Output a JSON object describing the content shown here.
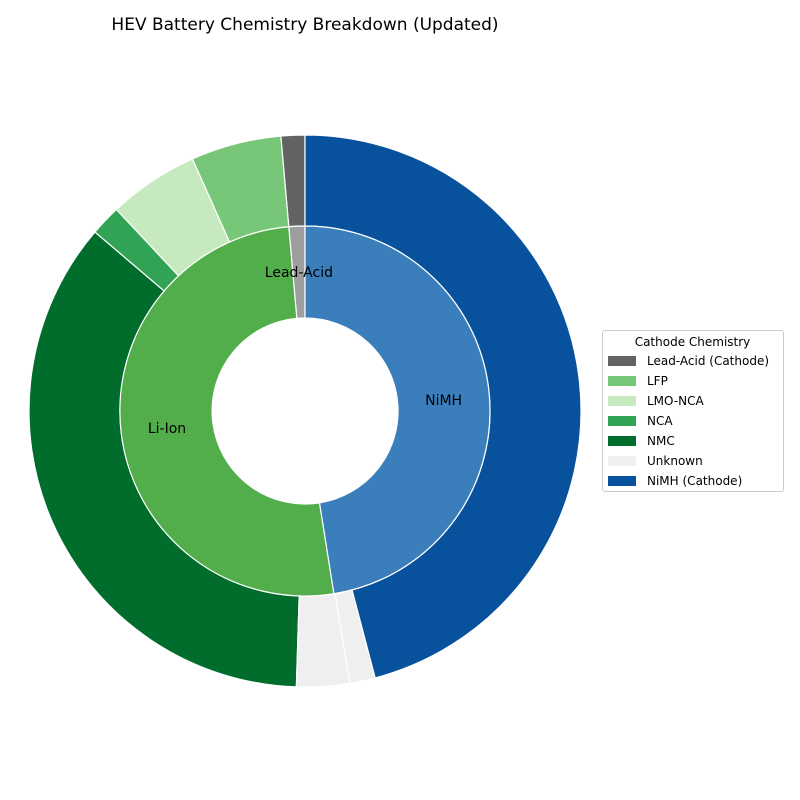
{
  "chart_data": {
    "type": "pie",
    "subtype": "nested-donut",
    "title": "HEV Battery Chemistry Breakdown (Updated)",
    "inner_ring": {
      "labels": [
        "Lead-Acid",
        "Li-Ion",
        "NiMH"
      ],
      "values": [
        1.4,
        51.1,
        47.5
      ],
      "colors": [
        "#9e9e9e",
        "#52ae4b",
        "#3a7ebb"
      ]
    },
    "outer_ring": {
      "labels": [
        "Lead-Acid (Cathode)",
        "LFP",
        "LMO-NCA",
        "NCA",
        "NMC",
        "Unknown",
        "Unknown",
        "NiMH (Cathode)"
      ],
      "values": [
        1.4,
        5.3,
        5.3,
        1.8,
        35.8,
        3.1,
        1.5,
        46.0
      ],
      "colors": [
        "#636363",
        "#78c678",
        "#c7e9c0",
        "#31a354",
        "#006d2c",
        "#efefef",
        "#efefef",
        "#08519c"
      ]
    },
    "legend": {
      "title": "Cathode Chemistry",
      "placement": "right",
      "entries": [
        {
          "label": "Lead-Acid (Cathode)",
          "color": "#636363"
        },
        {
          "label": "LFP",
          "color": "#78c678"
        },
        {
          "label": "LMO-NCA",
          "color": "#c7e9c0"
        },
        {
          "label": "NCA",
          "color": "#31a354"
        },
        {
          "label": "NMC",
          "color": "#006d2c"
        },
        {
          "label": "Unknown",
          "color": "#efefef"
        },
        {
          "label": "NiMH (Cathode)",
          "color": "#08519c"
        }
      ]
    }
  }
}
